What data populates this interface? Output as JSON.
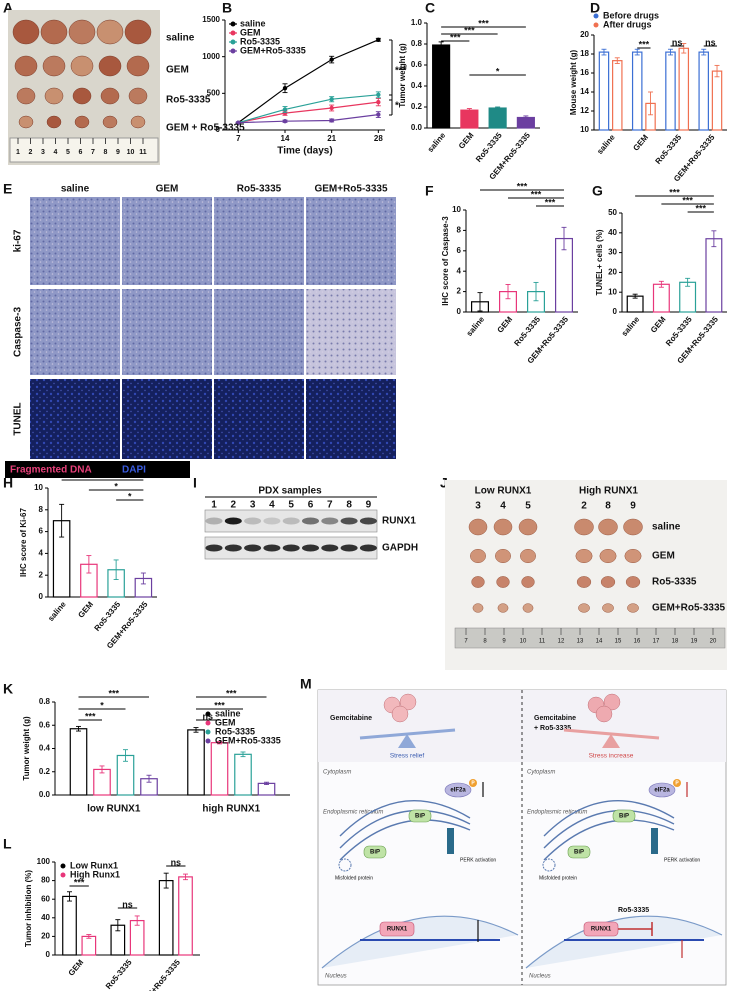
{
  "figure": {
    "A": {
      "letter": "A",
      "rows": [
        "saline",
        "GEM",
        "Ro5-3335",
        "GEM + Ro5-3335"
      ],
      "ruler": [
        "1",
        "2",
        "3",
        "4",
        "5",
        "6",
        "7",
        "8",
        "9",
        "10",
        "11"
      ]
    },
    "E": {
      "letter": "E",
      "columns": [
        "saline",
        "GEM",
        "Ro5-3335",
        "GEM+Ro5-3335"
      ],
      "rows": [
        "ki-67",
        "Caspase-3",
        "TUNEL"
      ],
      "legend": [
        "Fragmented DNA",
        "DAPI"
      ]
    },
    "I": {
      "letter": "I",
      "title": "PDX samples",
      "lanes": [
        "1",
        "2",
        "3",
        "4",
        "5",
        "6",
        "7",
        "8",
        "9"
      ],
      "bands": [
        "RUNX1",
        "GAPDH"
      ]
    },
    "J": {
      "letter": "J",
      "groups": [
        {
          "label": "Low RUNX1",
          "samples": [
            "3",
            "4",
            "5"
          ]
        },
        {
          "label": "High RUNX1",
          "samples": [
            "2",
            "8",
            "9"
          ]
        }
      ],
      "rows": [
        "saline",
        "GEM",
        "Ro5-3335",
        "GEM+Ro5-3335"
      ],
      "ruler": [
        "7",
        "8",
        "9",
        "10",
        "11",
        "12",
        "13",
        "14",
        "15",
        "16",
        "17",
        "18",
        "19",
        "20"
      ]
    },
    "M": {
      "letter": "M",
      "left": {
        "drug": [
          "Gemcitabine"
        ],
        "balance": "Stress relief"
      },
      "right": {
        "drug": [
          "Gemcitabine",
          "+ Ro5-3335"
        ],
        "balance": "Stress increase",
        "inhibitor": "Ro5-3335"
      },
      "labels": {
        "cytoplasm": "Cytoplasm",
        "er": "Endoplasmic reticulum",
        "eif": "eIF2a",
        "p": "P",
        "bip": "BiP",
        "perk": "PERK activation",
        "misfolded": "Misfolded protein",
        "runx1": "RUNX1",
        "nucleus": "Nucleus"
      }
    }
  },
  "chart_data": [
    {
      "panel": "B",
      "type": "line",
      "x": [
        7,
        14,
        21,
        28
      ],
      "xlim": [
        5,
        29
      ],
      "xticks": [
        7,
        14,
        21,
        28
      ],
      "xlabel": "Time (days)",
      "ylim": [
        0,
        1500
      ],
      "yticks": [
        0,
        500,
        1000,
        1500
      ],
      "legend": "upper left",
      "series": [
        {
          "name": "saline",
          "color": "#000000",
          "values": [
            100,
            570,
            960,
            1230
          ],
          "errors": [
            5,
            60,
            45,
            20
          ]
        },
        {
          "name": "GEM",
          "color": "#e8365f",
          "values": [
            100,
            230,
            300,
            380
          ],
          "errors": [
            5,
            30,
            40,
            50
          ]
        },
        {
          "name": "Ro5-3335",
          "color": "#2aa198",
          "values": [
            100,
            280,
            420,
            480
          ],
          "errors": [
            5,
            40,
            35,
            40
          ]
        },
        {
          "name": "GEM+Ro5-3335",
          "color": "#6b3fa0",
          "values": [
            100,
            120,
            130,
            210
          ],
          "errors": [
            5,
            15,
            20,
            40
          ]
        }
      ],
      "annotations": [
        "***",
        "*"
      ]
    },
    {
      "panel": "C",
      "type": "bar",
      "categories": [
        "saline",
        "GEM",
        "Ro5-3335",
        "GEM+Ro5-3335"
      ],
      "values": [
        0.79,
        0.17,
        0.19,
        0.1
      ],
      "errors": [
        0.03,
        0.015,
        0.01,
        0.015
      ],
      "colors": [
        "#000000",
        "#e8365f",
        "#1f8a86",
        "#6b3fa0"
      ],
      "filled": true,
      "ylabel": "Tumor weight (g)",
      "ylim": [
        0,
        1
      ],
      "yticks": [
        {
          "value": 0,
          "label": "0.0"
        },
        {
          "value": 0.2,
          "label": "0.2"
        },
        {
          "value": 0.4,
          "label": "0.4"
        },
        {
          "value": 0.6,
          "label": "0.6"
        },
        {
          "value": 0.8,
          "label": "0.8"
        },
        {
          "value": 1,
          "label": "1.0"
        }
      ],
      "annotations": [
        "***",
        "***",
        "***",
        "*"
      ]
    },
    {
      "panel": "D",
      "type": "grouped_bar",
      "categories": [
        "saline",
        "GEM",
        "Ro5-3335",
        "GEM+Ro5-3335"
      ],
      "filled": false,
      "legend": "top",
      "series": [
        {
          "name": "Before drugs",
          "color": "#3b6fd4",
          "values": [
            18.2,
            18.2,
            18.2,
            18.2
          ],
          "errors": [
            0.3,
            0.3,
            0.3,
            0.3
          ]
        },
        {
          "name": "After drugs",
          "color": "#f07050",
          "values": [
            17.3,
            12.8,
            18.6,
            16.2
          ],
          "errors": [
            0.3,
            1.2,
            0.5,
            0.6
          ]
        }
      ],
      "ylabel": "Mouse weight (g)",
      "ylim": [
        10,
        20
      ],
      "yticks": [
        10,
        12,
        14,
        16,
        18,
        20
      ],
      "annotations": [
        "***",
        "ns",
        "ns"
      ]
    },
    {
      "panel": "F",
      "type": "bar",
      "categories": [
        "saline",
        "GEM",
        "Ro5-3335",
        "GEM+Ro5-3335"
      ],
      "values": [
        1,
        2,
        2,
        7.2
      ],
      "errors": [
        0.9,
        0.7,
        0.9,
        1.1
      ],
      "colors": [
        "#000000",
        "#e8367a",
        "#2aa198",
        "#6b3fa0"
      ],
      "filled": false,
      "ylabel": "IHC score of Caspase-3",
      "ylim": [
        0,
        10
      ],
      "yticks": [
        0,
        2,
        4,
        6,
        8,
        10
      ],
      "annotations": [
        "***",
        "***",
        "***"
      ]
    },
    {
      "panel": "G",
      "type": "bar",
      "categories": [
        "saline",
        "GEM",
        "Ro5-3335",
        "GEM+Ro5-3335"
      ],
      "values": [
        8,
        14,
        15,
        37
      ],
      "errors": [
        1,
        1.5,
        2,
        4
      ],
      "colors": [
        "#000000",
        "#e8367a",
        "#2aa198",
        "#6b3fa0"
      ],
      "filled": false,
      "ylabel": "TUNEL+ cells (%)",
      "ylim": [
        0,
        50
      ],
      "yticks": [
        0,
        10,
        20,
        30,
        40,
        50
      ],
      "annotations": [
        "***",
        "***",
        "***"
      ]
    },
    {
      "panel": "H",
      "type": "bar",
      "categories": [
        "saline",
        "GEM",
        "Ro5-3335",
        "GEM+Ro5-3335"
      ],
      "values": [
        7,
        3,
        2.5,
        1.7
      ],
      "errors": [
        1.5,
        0.8,
        0.9,
        0.5
      ],
      "colors": [
        "#000000",
        "#e8367a",
        "#2aa198",
        "#6b3fa0"
      ],
      "filled": false,
      "ylabel": "IHC score of Ki-67",
      "ylim": [
        0,
        10
      ],
      "yticks": [
        0,
        2,
        4,
        6,
        8,
        10
      ],
      "annotations": [
        "***",
        "*",
        "*"
      ]
    },
    {
      "panel": "K",
      "type": "grouped_bar",
      "categories": [
        "low RUNX1",
        "high RUNX1"
      ],
      "filled": false,
      "legend": "upper right",
      "series": [
        {
          "name": "saline",
          "color": "#000000",
          "values": [
            0.57,
            0.56
          ],
          "errors": [
            0.02,
            0.02
          ]
        },
        {
          "name": "GEM",
          "color": "#e8367a",
          "values": [
            0.22,
            0.45
          ],
          "errors": [
            0.03,
            0.01
          ]
        },
        {
          "name": "Ro5-3335",
          "color": "#2aa198",
          "values": [
            0.34,
            0.35
          ],
          "errors": [
            0.05,
            0.02
          ]
        },
        {
          "name": "GEM+Ro5-3335",
          "color": "#6b3fa0",
          "values": [
            0.14,
            0.1
          ],
          "errors": [
            0.03,
            0.01
          ]
        }
      ],
      "ylabel": "Tumor weight (g)",
      "ylim": [
        0,
        0.8
      ],
      "yticks": [
        {
          "value": 0,
          "label": "0.0"
        },
        {
          "value": 0.2,
          "label": "0.2"
        },
        {
          "value": 0.4,
          "label": "0.4"
        },
        {
          "value": 0.6,
          "label": "0.6"
        },
        {
          "value": 0.8,
          "label": "0.8"
        }
      ],
      "annotations": [
        "***",
        "*",
        "***",
        "***",
        "***",
        "ns"
      ]
    },
    {
      "panel": "L",
      "type": "grouped_bar",
      "categories": [
        "GEM",
        "Ro5-3335",
        "GEM+Ro5-3335"
      ],
      "filled": false,
      "legend": "upper left",
      "series": [
        {
          "name": "Low Runx1",
          "color": "#000000",
          "values": [
            63,
            32,
            80
          ],
          "errors": [
            5,
            6,
            8
          ]
        },
        {
          "name": "High Runx1",
          "color": "#e8367a",
          "values": [
            20,
            37,
            84
          ],
          "errors": [
            2,
            5,
            3
          ]
        }
      ],
      "ylabel": "Tumor inhibition (%)",
      "ylim": [
        0,
        100
      ],
      "yticks": [
        0,
        20,
        40,
        60,
        80,
        100
      ],
      "annotations": [
        "***",
        "ns",
        "ns"
      ]
    }
  ]
}
